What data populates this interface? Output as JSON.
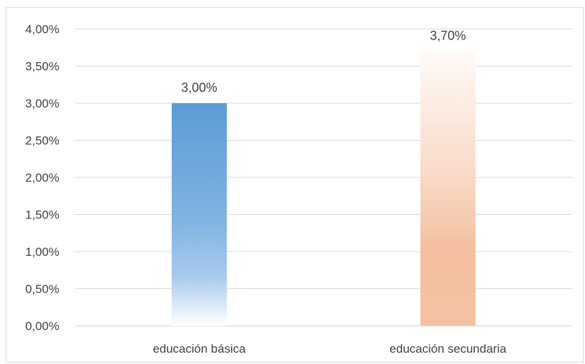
{
  "chart_data": {
    "type": "bar",
    "categories": [
      "educación básica",
      "educación secundaria"
    ],
    "values": [
      3.0,
      3.7
    ],
    "value_labels": [
      "3,00%",
      "3,70%"
    ],
    "title": "",
    "xlabel": "",
    "ylabel": "",
    "ylim": [
      0,
      4.0
    ],
    "yticks": [
      0,
      0.5,
      1.0,
      1.5,
      2.0,
      2.5,
      3.0,
      3.5,
      4.0
    ],
    "ytick_labels": [
      "0,00%",
      "0,50%",
      "1,00%",
      "1,50%",
      "2,00%",
      "2,50%",
      "3,00%",
      "3,50%",
      "4,00%"
    ],
    "grid": true,
    "legend": "none",
    "colors": [
      "#5b9bd5",
      "#f4b183"
    ]
  }
}
